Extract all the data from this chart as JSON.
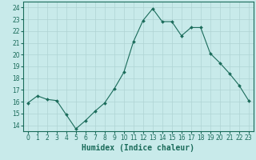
{
  "x": [
    0,
    1,
    2,
    3,
    4,
    5,
    6,
    7,
    8,
    9,
    10,
    11,
    12,
    13,
    14,
    15,
    16,
    17,
    18,
    19,
    20,
    21,
    22,
    23
  ],
  "y": [
    15.9,
    16.5,
    16.2,
    16.1,
    14.9,
    13.7,
    14.4,
    15.2,
    15.9,
    17.1,
    18.5,
    21.1,
    22.9,
    23.9,
    22.8,
    22.8,
    21.6,
    22.3,
    22.3,
    20.1,
    19.3,
    18.4,
    17.4,
    16.1
  ],
  "line_color": "#1a6b5a",
  "marker": "D",
  "marker_size": 2,
  "bg_color": "#c8eaea",
  "grid_color": "#afd4d4",
  "xlabel": "Humidex (Indice chaleur)",
  "xlabel_fontsize": 7,
  "xlim": [
    -0.5,
    23.5
  ],
  "ylim": [
    13.5,
    24.5
  ],
  "yticks": [
    14,
    15,
    16,
    17,
    18,
    19,
    20,
    21,
    22,
    23,
    24
  ],
  "xtick_labels": [
    "0",
    "1",
    "2",
    "3",
    "4",
    "5",
    "6",
    "7",
    "8",
    "9",
    "10",
    "11",
    "12",
    "13",
    "14",
    "15",
    "16",
    "17",
    "18",
    "19",
    "20",
    "21",
    "22",
    "23"
  ],
  "tick_color": "#1a6b5a",
  "tick_fontsize": 5.5
}
